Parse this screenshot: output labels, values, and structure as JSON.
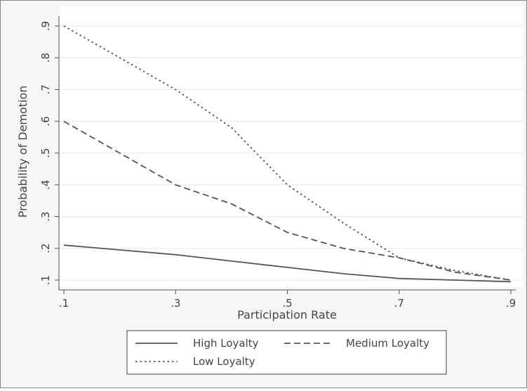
{
  "chart_data": {
    "type": "line",
    "title": "",
    "xlabel": "Participation Rate",
    "ylabel": "Probability of Demotion",
    "xlim": [
      0.1,
      0.9
    ],
    "ylim": [
      0.1,
      0.9
    ],
    "x_ticks": [
      0.1,
      0.3,
      0.5,
      0.7,
      0.9
    ],
    "x_tick_labels": [
      ".1",
      ".3",
      ".5",
      ".7",
      ".9"
    ],
    "y_ticks": [
      0.1,
      0.2,
      0.3,
      0.4,
      0.5,
      0.6,
      0.7,
      0.8,
      0.9
    ],
    "y_tick_labels": [
      ".1",
      ".2",
      ".3",
      ".4",
      ".5",
      ".6",
      ".7",
      ".8",
      ".9"
    ],
    "grid": true,
    "legend_position": "bottom",
    "series": [
      {
        "name": "High Loyalty",
        "style": "solid",
        "x": [
          0.1,
          0.2,
          0.3,
          0.4,
          0.5,
          0.6,
          0.7,
          0.8,
          0.9
        ],
        "y": [
          0.21,
          0.195,
          0.18,
          0.16,
          0.14,
          0.12,
          0.105,
          0.1,
          0.095
        ]
      },
      {
        "name": "Medium Loyalty",
        "style": "dashed",
        "x": [
          0.1,
          0.2,
          0.3,
          0.4,
          0.5,
          0.6,
          0.7,
          0.8,
          0.9
        ],
        "y": [
          0.6,
          0.5,
          0.4,
          0.34,
          0.25,
          0.2,
          0.17,
          0.125,
          0.1
        ]
      },
      {
        "name": "Low Loyalty",
        "style": "dotted",
        "x": [
          0.1,
          0.2,
          0.3,
          0.4,
          0.5,
          0.6,
          0.7,
          0.8,
          0.9
        ],
        "y": [
          0.9,
          0.8,
          0.7,
          0.58,
          0.4,
          0.28,
          0.17,
          0.13,
          0.1
        ]
      }
    ]
  },
  "colors": {
    "line": "#555555",
    "grid": "#ececec",
    "axis": "#555555",
    "plot_bg": "#ffffff",
    "page_bg": "#f6f6f6"
  }
}
